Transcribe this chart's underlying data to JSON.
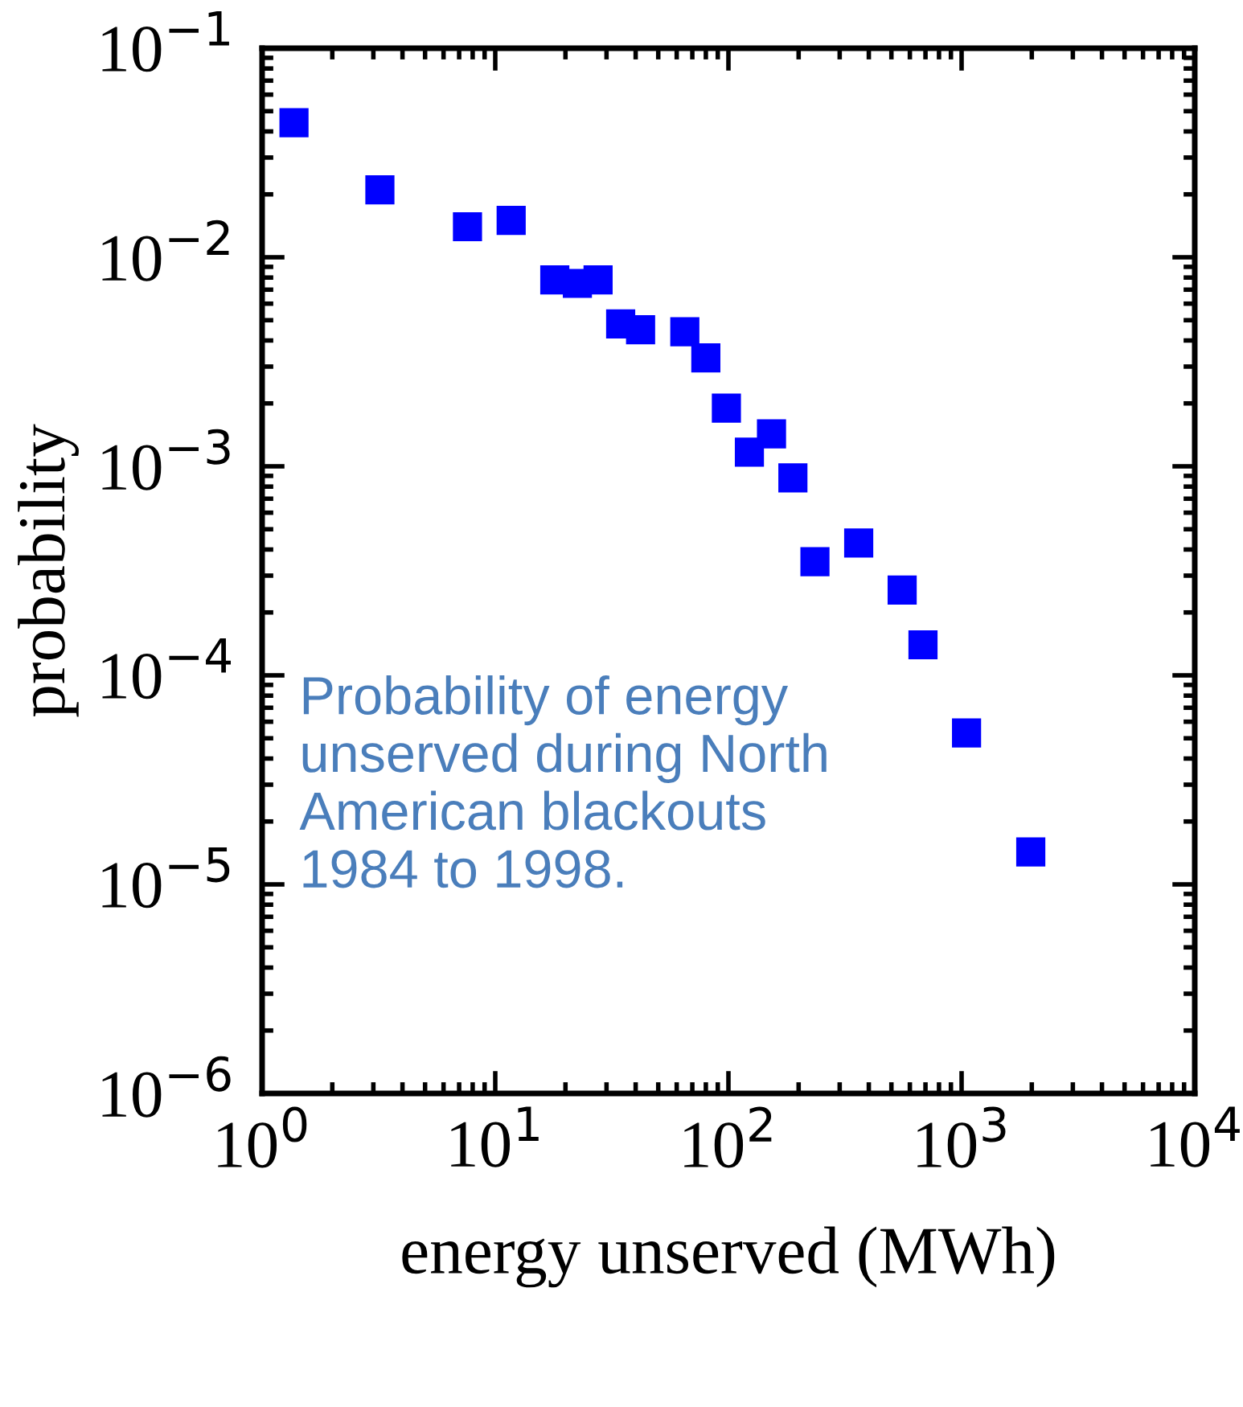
{
  "chart_data": {
    "type": "scatter",
    "xlabel": "energy unserved (MWh)",
    "ylabel": "probability",
    "log": "xy",
    "marker": "square",
    "grid": false,
    "xlim": [
      1,
      10000
    ],
    "ylim": [
      1e-06,
      0.1
    ],
    "xticks": [
      {
        "value": 1,
        "label": "10$^{0}$"
      },
      {
        "value": 10,
        "label": "10$^{1}$"
      },
      {
        "value": 100,
        "label": "10$^{2}$"
      },
      {
        "value": 1000,
        "label": "10$^{3}$"
      },
      {
        "value": 10000,
        "label": "10$^{4}$"
      }
    ],
    "yticks": [
      {
        "value": 1e-06,
        "label": "10$^{−6}$"
      },
      {
        "value": 1e-05,
        "label": "10$^{−5}$"
      },
      {
        "value": 0.0001,
        "label": "10$^{−4}$"
      },
      {
        "value": 0.001,
        "label": "10$^{−3}$"
      },
      {
        "value": 0.01,
        "label": "10$^{−2}$"
      },
      {
        "value": 0.1,
        "label": "10$^{−1}$"
      }
    ],
    "series": [
      {
        "color": "#0000ff",
        "x": [
          1.37,
          3.2,
          7.6,
          11.7,
          18,
          22.5,
          27.6,
          34.5,
          42,
          65,
          80,
          98,
          123,
          153,
          189,
          235,
          362,
          556,
          683,
          1050,
          1980
        ],
        "values": [
          0.044,
          0.021,
          0.014,
          0.015,
          0.0078,
          0.0075,
          0.0078,
          0.0048,
          0.0045,
          0.0044,
          0.0033,
          0.0019,
          0.00117,
          0.00143,
          0.00088,
          0.00035,
          0.00043,
          0.000256,
          0.00014,
          5.3e-05,
          1.43e-05
        ]
      }
    ],
    "annotations": [
      "Probability of energy\nunserved during North\nAmerican blackouts\n1984 to 1998."
    ]
  }
}
